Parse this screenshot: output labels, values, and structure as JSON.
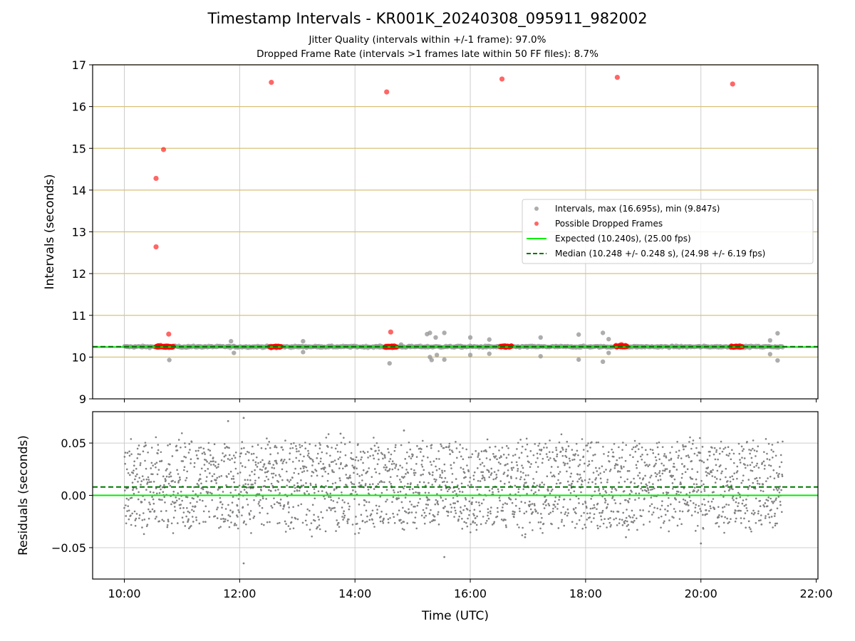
{
  "title": "Timestamp Intervals - KR001K_20240308_095911_982002",
  "subtitle_lines": [
    "Jitter Quality (intervals within +/-1 frame): 97.0%",
    "Dropped Frame Rate (intervals >1 frames late within 50 FF files): 8.7%"
  ],
  "colors": {
    "intervals": "#999999",
    "dropped": "#ff0000",
    "expected": "#00ee00",
    "median": "#007700",
    "residuals": "#808080",
    "hgrid_top": "#d8c27a",
    "grid": "#cccccc"
  },
  "chart_data": [
    {
      "type": "scatter",
      "ylabel": "Intervals (seconds)",
      "xlabel": "",
      "x_unit": "hours (UTC)",
      "xlim": [
        9.45,
        22.03
      ],
      "ylim": [
        9,
        17
      ],
      "yticks": [
        "9",
        "10",
        "11",
        "12",
        "13",
        "14",
        "15",
        "16",
        "17"
      ],
      "grid": true,
      "legend_position": "center-right",
      "legend": [
        "Intervals, max (16.695s), min (9.847s)",
        "Possible Dropped Frames",
        "Expected (10.240s), (25.00 fps)",
        "Median (10.248 +/- 0.248 s), (24.98 +/- 6.19 fps)"
      ],
      "expected_line": 10.24,
      "median_line": 10.248,
      "series": [
        {
          "name": "Intervals, max (16.695s), min (9.847s)",
          "description": "dense band of intervals along ~10.24 s from 10:00 to 21:25 UTC",
          "baseline": 10.248,
          "x_range": [
            10.0,
            21.42
          ],
          "outliers": [
            {
              "x": 10.78,
              "y": 9.93
            },
            {
              "x": 11.85,
              "y": 10.38
            },
            {
              "x": 11.9,
              "y": 10.1
            },
            {
              "x": 13.1,
              "y": 10.38
            },
            {
              "x": 13.1,
              "y": 10.12
            },
            {
              "x": 14.6,
              "y": 9.85
            },
            {
              "x": 14.8,
              "y": 10.3
            },
            {
              "x": 15.25,
              "y": 10.55
            },
            {
              "x": 15.3,
              "y": 10.58
            },
            {
              "x": 15.3,
              "y": 10.0
            },
            {
              "x": 15.33,
              "y": 9.93
            },
            {
              "x": 15.4,
              "y": 10.47
            },
            {
              "x": 15.42,
              "y": 10.05
            },
            {
              "x": 15.55,
              "y": 10.58
            },
            {
              "x": 15.55,
              "y": 9.94
            },
            {
              "x": 16.0,
              "y": 10.47
            },
            {
              "x": 16.0,
              "y": 10.05
            },
            {
              "x": 16.33,
              "y": 10.42
            },
            {
              "x": 16.33,
              "y": 10.08
            },
            {
              "x": 17.22,
              "y": 10.47
            },
            {
              "x": 17.22,
              "y": 10.02
            },
            {
              "x": 17.88,
              "y": 10.54
            },
            {
              "x": 17.88,
              "y": 9.94
            },
            {
              "x": 18.3,
              "y": 10.58
            },
            {
              "x": 18.3,
              "y": 9.89
            },
            {
              "x": 18.4,
              "y": 10.43
            },
            {
              "x": 18.4,
              "y": 10.1
            },
            {
              "x": 21.2,
              "y": 10.4
            },
            {
              "x": 21.2,
              "y": 10.07
            },
            {
              "x": 21.33,
              "y": 10.57
            },
            {
              "x": 21.33,
              "y": 9.92
            }
          ]
        },
        {
          "name": "Possible Dropped Frames",
          "points": [
            {
              "x": 10.55,
              "y": 14.28
            },
            {
              "x": 10.55,
              "y": 12.64
            },
            {
              "x": 10.68,
              "y": 14.97
            },
            {
              "x": 10.77,
              "y": 10.55
            },
            {
              "x": 12.55,
              "y": 16.58
            },
            {
              "x": 14.55,
              "y": 16.35
            },
            {
              "x": 14.62,
              "y": 10.6
            },
            {
              "x": 16.55,
              "y": 16.66
            },
            {
              "x": 18.55,
              "y": 16.7
            },
            {
              "x": 18.62,
              "y": 10.3
            },
            {
              "x": 20.55,
              "y": 16.54
            }
          ],
          "clusters": [
            {
              "x0": 10.55,
              "x1": 10.85,
              "y": 10.25
            },
            {
              "x0": 12.52,
              "x1": 12.72,
              "y": 10.25
            },
            {
              "x0": 14.52,
              "x1": 14.72,
              "y": 10.25
            },
            {
              "x0": 16.52,
              "x1": 16.72,
              "y": 10.25
            },
            {
              "x0": 18.52,
              "x1": 18.72,
              "y": 10.26
            },
            {
              "x0": 20.52,
              "x1": 20.72,
              "y": 10.25
            }
          ]
        }
      ]
    },
    {
      "type": "scatter",
      "ylabel": "Residuals (seconds)",
      "xlabel": "Time (UTC)",
      "x_unit": "hours (UTC)",
      "xlim": [
        9.45,
        22.03
      ],
      "ylim": [
        -0.08,
        0.08
      ],
      "yticks": [
        "−0.05",
        "0.00",
        "0.05"
      ],
      "ytick_values": [
        -0.05,
        0.0,
        0.05
      ],
      "xticks": [
        "10:00",
        "12:00",
        "14:00",
        "16:00",
        "18:00",
        "20:00",
        "22:00"
      ],
      "xtick_values": [
        10,
        12,
        14,
        16,
        18,
        20,
        22
      ],
      "grid": true,
      "expected_line": 0.0,
      "median_line": 0.008,
      "series": [
        {
          "name": "Residuals",
          "description": "roughly 2500 residual points uniformly spread between about -0.03 and +0.05 s from 10:00 to 21:25 UTC",
          "x_range": [
            10.0,
            21.42
          ],
          "y_range_typical": [
            -0.03,
            0.05
          ],
          "outliers": [
            {
              "x": 11.8,
              "y": 0.071
            },
            {
              "x": 12.07,
              "y": 0.074
            },
            {
              "x": 12.07,
              "y": -0.065
            },
            {
              "x": 13.75,
              "y": 0.059
            },
            {
              "x": 14.85,
              "y": 0.062
            },
            {
              "x": 15.55,
              "y": -0.059
            },
            {
              "x": 20.0,
              "y": -0.046
            },
            {
              "x": 16.95,
              "y": -0.04
            },
            {
              "x": 18.7,
              "y": -0.04
            }
          ]
        }
      ]
    }
  ]
}
